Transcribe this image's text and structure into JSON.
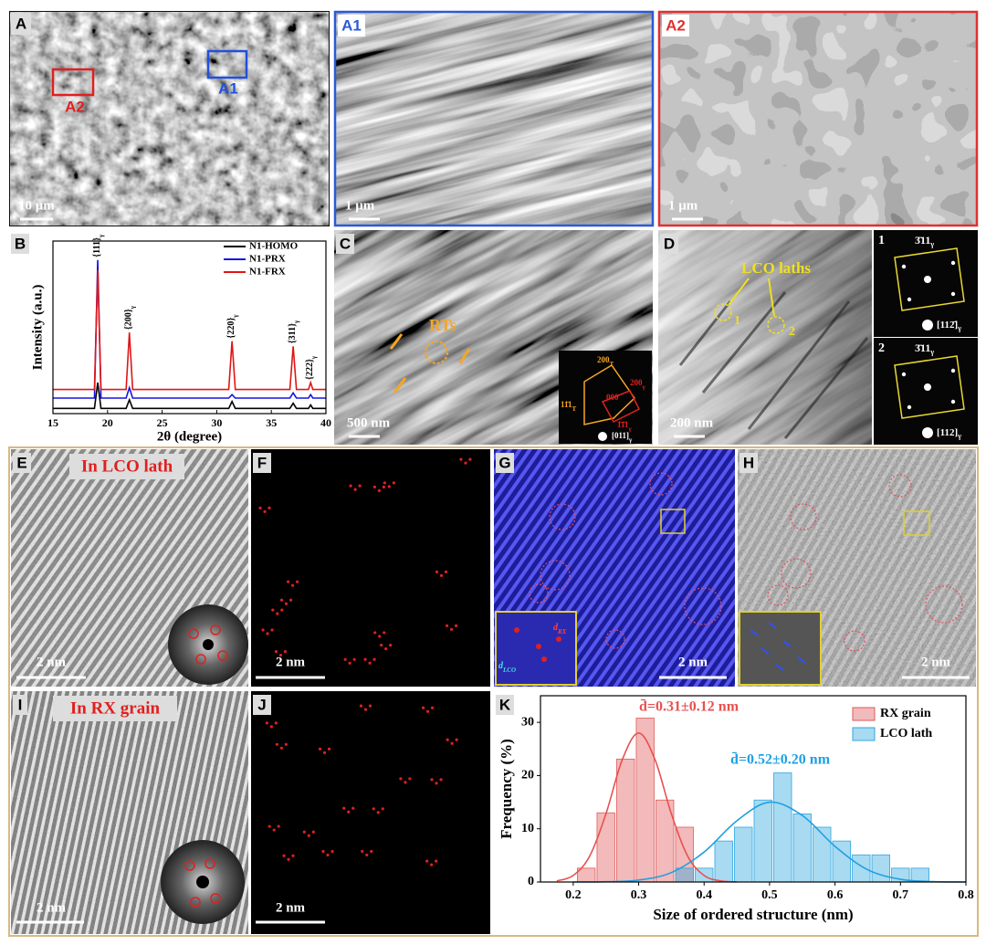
{
  "panels": {
    "A": {
      "label": "A",
      "box_labels": [
        "A2",
        "A1"
      ],
      "scale_bar": "10 μm"
    },
    "A1": {
      "label": "A1",
      "scale_bar": "1 μm"
    },
    "A2": {
      "label": "A2",
      "scale_bar": "1 μm"
    },
    "B": {
      "label": "B"
    },
    "C": {
      "label": "C",
      "annotation": "RTs",
      "scale_bar": "500 nm",
      "inset": [
        {
          "text": "200",
          "sub": "T"
        },
        {
          "text": "000",
          "sub": ""
        },
        {
          "text": "200",
          "sub": "γ"
        },
        {
          "text": "11̄1",
          "sub": "T"
        },
        {
          "text": "1̄1̄1",
          "sub": "γ"
        },
        {
          "text": "[011]",
          "sub": "γ"
        }
      ]
    },
    "D": {
      "label": "D",
      "annotation": "LCO laths",
      "markers": [
        "1",
        "2"
      ],
      "scale_bar": "200 nm",
      "insets": [
        {
          "number": "1",
          "spot": "3̄11",
          "spot_sub": "γ",
          "zone": "[112̄]",
          "zone_sub": "γ"
        },
        {
          "number": "2",
          "spot": "3̄11",
          "spot_sub": "γ",
          "zone": "[112]",
          "zone_sub": "γ"
        }
      ]
    },
    "E": {
      "label": "E",
      "title": "In LCO lath",
      "scale_bar": "2 nm"
    },
    "F": {
      "label": "F",
      "scale_bar": "2 nm"
    },
    "G": {
      "label": "G",
      "scale_bar": "2 nm",
      "inset": [
        {
          "text": "d",
          "sub": "RX"
        },
        {
          "text": "d",
          "sub": "LCO"
        }
      ]
    },
    "H": {
      "label": "H",
      "scale_bar": "2 nm"
    },
    "I": {
      "label": "I",
      "title": "In RX grain",
      "scale_bar": "2 nm"
    },
    "J": {
      "label": "J",
      "scale_bar": "2 nm"
    },
    "K": {
      "label": "K"
    }
  },
  "chart_data": [
    {
      "type": "line",
      "xlabel": "2θ (degree)",
      "ylabel": "Intensity (a.u.)",
      "x": [
        15,
        18.8,
        19.1,
        19.4,
        21.7,
        22.0,
        22.3,
        31.1,
        31.4,
        31.7,
        36.7,
        37.0,
        37.3,
        38.4,
        38.6,
        38.8,
        40
      ],
      "xlim": [
        15,
        40
      ],
      "xticks": [
        15,
        20,
        25,
        30,
        35,
        40
      ],
      "ylim": [
        0,
        100
      ],
      "legend": "top-right",
      "series": [
        {
          "name": "N1-HOMO",
          "color": "#000000",
          "values": [
            3,
            3,
            18,
            3,
            3,
            8,
            3,
            3,
            7,
            3,
            3,
            6,
            3,
            3,
            5,
            3,
            3
          ]
        },
        {
          "name": "N1-PRX",
          "color": "#1515e0",
          "values": [
            9,
            9,
            89,
            9,
            9,
            15,
            9,
            9,
            11,
            9,
            9,
            12,
            9,
            9,
            11,
            9,
            9
          ]
        },
        {
          "name": "N1-FRX",
          "color": "#e01515",
          "values": [
            14,
            14,
            83,
            14,
            14,
            47,
            14,
            14,
            42,
            14,
            14,
            39,
            14,
            14,
            18,
            14,
            14
          ]
        }
      ],
      "peak_labels": [
        {
          "text": "{111}",
          "sub": "γ",
          "x": 19.1
        },
        {
          "text": "{200}",
          "sub": "γ",
          "x": 22.0
        },
        {
          "text": "{220}",
          "sub": "γ",
          "x": 31.4
        },
        {
          "text": "{311}",
          "sub": "γ",
          "x": 37.0
        },
        {
          "text": "{222}",
          "sub": "γ",
          "x": 38.6
        }
      ]
    },
    {
      "type": "histogram",
      "xlabel": "Size of ordered structure (nm)",
      "ylabel": "Frequency (%)",
      "bins": [
        0.205,
        0.235,
        0.265,
        0.295,
        0.325,
        0.355,
        0.385,
        0.415,
        0.445,
        0.475,
        0.505,
        0.535,
        0.565,
        0.595,
        0.625,
        0.655,
        0.685,
        0.715,
        0.745
      ],
      "xlim": [
        0.15,
        0.8
      ],
      "xticks": [
        0.2,
        0.3,
        0.4,
        0.5,
        0.6,
        0.7,
        0.8
      ],
      "ylim": [
        0,
        35
      ],
      "yticks": [
        0,
        10,
        20,
        30
      ],
      "legend": "top-right",
      "series": [
        {
          "name": "RX grain",
          "color": "#e05a5a",
          "values": [
            2.6,
            13,
            23.1,
            30.8,
            15.4,
            10.3,
            0,
            0,
            0,
            0,
            0,
            0,
            0,
            0,
            0,
            0,
            0,
            0
          ]
        },
        {
          "name": "LCO lath",
          "color": "#2fa6e0",
          "values": [
            0,
            0,
            0,
            0,
            0,
            2.6,
            2.6,
            7.7,
            10.3,
            15.4,
            20.5,
            12.8,
            10.3,
            7.7,
            5.1,
            5.1,
            2.6,
            2.6
          ]
        }
      ],
      "fit_curves": [
        {
          "color": "#e8504f",
          "x": [
            0.175,
            0.2,
            0.225,
            0.25,
            0.275,
            0.3,
            0.325,
            0.35,
            0.375,
            0.4,
            0.425,
            0.45
          ],
          "values": [
            0.21,
            1.23,
            4.83,
            12.8,
            23.0,
            28,
            23.0,
            12.8,
            4.83,
            1.23,
            0.21,
            0.02
          ]
        },
        {
          "color": "#1ea0e0",
          "x": [
            0.2,
            0.25,
            0.3,
            0.35,
            0.4,
            0.45,
            0.5,
            0.55,
            0.6,
            0.65,
            0.7,
            0.75,
            0.8
          ],
          "values": [
            0,
            0.05,
            0.36,
            1.77,
            5.63,
            11.5,
            15.0,
            12.5,
            6.7,
            2.3,
            0.51,
            0.07,
            0
          ]
        }
      ],
      "annotations": [
        {
          "text": "d̄=0.31±0.12 nm",
          "color": "#e8504f"
        },
        {
          "text": "d̄=0.52±0.20 nm",
          "color": "#1ea0e0"
        }
      ]
    }
  ]
}
